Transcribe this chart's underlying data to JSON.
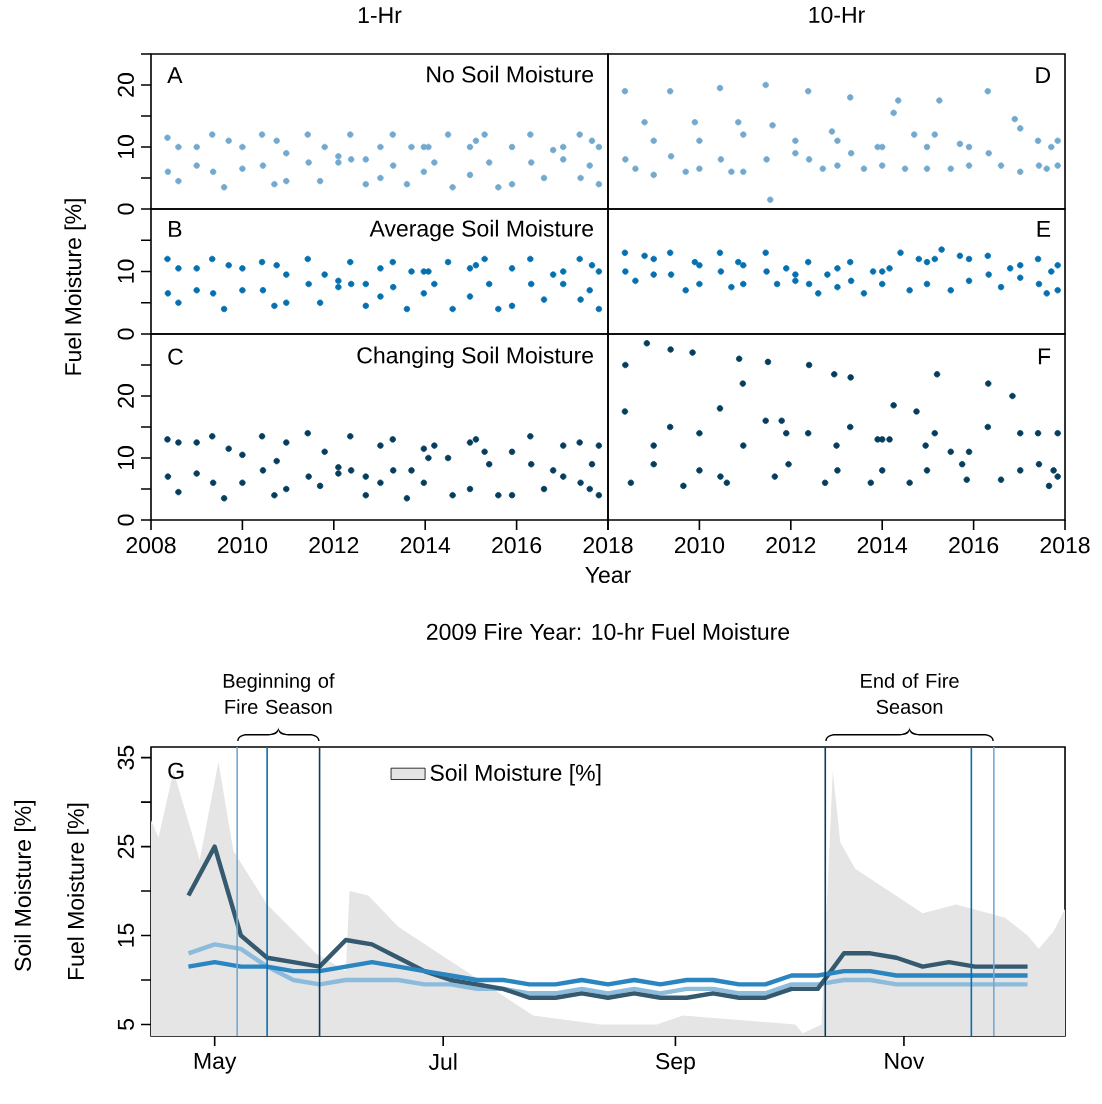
{
  "chart_data": [
    {
      "type": "scatter",
      "title": "1-Hr",
      "annotations": [
        "A",
        "No Soil Moisture"
      ],
      "color": "#74a9cf",
      "tick_labels": "y",
      "xlim": [
        2008,
        2018
      ],
      "ylim": [
        0,
        25
      ],
      "yticks": [
        0,
        {
          "value": 5,
          "label": null
        },
        10,
        {
          "value": 15,
          "label": null
        },
        20,
        {
          "value": 25,
          "label": null
        }
      ],
      "x": [
        2008.36,
        2008.37,
        2008.6,
        2008.6,
        2009.0,
        2009.0,
        2009.34,
        2009.36,
        2009.6,
        2009.7,
        2010.0,
        2010.0,
        2010.43,
        2010.45,
        2010.7,
        2010.75,
        2010.96,
        2010.96,
        2011.43,
        2011.45,
        2011.7,
        2011.8,
        2012.1,
        2012.1,
        2012.36,
        2012.38,
        2012.7,
        2012.7,
        2013.02,
        2013.02,
        2013.29,
        2013.3,
        2013.6,
        2013.7,
        2013.97,
        2013.97,
        2014.07,
        2014.2,
        2014.6,
        2014.5,
        2014.98,
        2014.98,
        2015.11,
        2015.3,
        2015.6,
        2015.4,
        2015.9,
        2015.9,
        2016.3,
        2016.32,
        2016.6,
        2016.8,
        2017.02,
        2017.02,
        2017.38,
        2017.4,
        2017.6,
        2017.65,
        2017.8,
        2017.8
      ],
      "values": [
        11.5,
        6,
        4.5,
        10,
        10,
        7,
        12,
        6,
        3.5,
        11,
        10,
        6.5,
        12,
        7,
        4,
        11,
        9,
        4.5,
        12,
        7.5,
        4.5,
        10,
        8.5,
        7.5,
        12,
        8,
        4,
        8,
        10,
        5,
        12,
        7,
        4,
        10,
        10,
        6,
        10,
        7.5,
        3.5,
        12,
        10,
        5.5,
        11,
        12,
        3.5,
        7.5,
        10,
        4,
        12,
        7.5,
        5,
        9.5,
        10,
        8,
        12,
        5,
        7,
        11,
        10,
        4
      ]
    },
    {
      "type": "scatter",
      "title": "10-Hr",
      "annotations": [
        "D"
      ],
      "color": "#74a9cf",
      "tick_labels": false,
      "xlim": [
        2008,
        2018
      ],
      "ylim": [
        0,
        25
      ],
      "x": [
        2008.37,
        2008.38,
        2008.6,
        2008.8,
        2009.0,
        2009.0,
        2009.36,
        2009.38,
        2009.7,
        2009.9,
        2010.0,
        2010.0,
        2010.45,
        2010.47,
        2010.7,
        2010.85,
        2010.96,
        2010.96,
        2011.45,
        2011.47,
        2011.55,
        2011.6,
        2012.1,
        2012.1,
        2012.38,
        2012.4,
        2012.7,
        2012.9,
        2013.02,
        2013.02,
        2013.3,
        2013.32,
        2013.6,
        2013.9,
        2014.0,
        2014.0,
        2014.25,
        2014.35,
        2014.5,
        2014.7,
        2014.98,
        2014.98,
        2015.15,
        2015.25,
        2015.5,
        2015.7,
        2015.9,
        2015.9,
        2016.31,
        2016.33,
        2016.6,
        2016.9,
        2017.02,
        2017.02,
        2017.41,
        2017.43,
        2017.6,
        2017.7,
        2017.84,
        2017.84
      ],
      "values": [
        19,
        8,
        6.5,
        14,
        11,
        5.5,
        19,
        8.5,
        6,
        14,
        11,
        6.5,
        19.5,
        8,
        6,
        14,
        12,
        6,
        20,
        8,
        1.5,
        13.5,
        11,
        9,
        19,
        8,
        6.5,
        12.5,
        11,
        7,
        18,
        9,
        6.5,
        10,
        10,
        7,
        15.5,
        17.5,
        6.5,
        12,
        10,
        6.5,
        12,
        17.5,
        6.5,
        10.5,
        10,
        7,
        19,
        9,
        7,
        14.5,
        13,
        6,
        11,
        7,
        6.5,
        10,
        11,
        7
      ]
    },
    {
      "type": "scatter",
      "ylabel": "Fuel Moisture [%]",
      "annotations": [
        "B",
        "Average Soil Moisture"
      ],
      "color": "#0570b0",
      "tick_labels": "y",
      "xlim": [
        2008,
        2018
      ],
      "ylim": [
        0,
        20
      ],
      "yticks": [
        0,
        {
          "value": 5,
          "label": null
        },
        10,
        {
          "value": 15,
          "label": null
        }
      ],
      "x": [
        2008.36,
        2008.37,
        2008.6,
        2008.6,
        2009.0,
        2009.0,
        2009.34,
        2009.36,
        2009.6,
        2009.7,
        2010.0,
        2010.0,
        2010.43,
        2010.45,
        2010.7,
        2010.75,
        2010.96,
        2010.96,
        2011.43,
        2011.45,
        2011.7,
        2011.8,
        2012.1,
        2012.1,
        2012.36,
        2012.38,
        2012.7,
        2012.7,
        2013.02,
        2013.02,
        2013.29,
        2013.3,
        2013.6,
        2013.7,
        2013.97,
        2013.97,
        2014.07,
        2014.2,
        2014.6,
        2014.5,
        2014.98,
        2014.98,
        2015.11,
        2015.3,
        2015.6,
        2015.4,
        2015.9,
        2015.9,
        2016.3,
        2016.32,
        2016.6,
        2016.8,
        2017.02,
        2017.02,
        2017.38,
        2017.4,
        2017.6,
        2017.65,
        2017.8,
        2017.8
      ],
      "values": [
        12,
        6.5,
        5,
        10.5,
        10.5,
        7,
        12,
        6.5,
        4,
        11,
        10.5,
        7,
        11.5,
        7,
        4.5,
        11,
        9.5,
        5,
        12,
        8,
        5,
        9.5,
        8.5,
        7.5,
        11.5,
        8,
        4.5,
        8,
        10.5,
        6,
        11.5,
        7.5,
        4,
        10,
        10,
        6.5,
        10,
        8,
        4,
        11.5,
        10.5,
        6,
        11,
        12,
        4,
        8,
        10.5,
        4.5,
        12,
        8,
        5.5,
        9.5,
        10,
        8,
        12,
        5.5,
        7,
        11,
        10,
        4
      ]
    },
    {
      "type": "scatter",
      "annotations": [
        "E"
      ],
      "color": "#0570b0",
      "tick_labels": false,
      "xlim": [
        2008,
        2018
      ],
      "ylim": [
        0,
        20
      ],
      "x": [
        2008.37,
        2008.38,
        2008.6,
        2008.8,
        2009.0,
        2009.0,
        2009.36,
        2009.38,
        2009.7,
        2009.9,
        2010.0,
        2010.0,
        2010.45,
        2010.47,
        2010.7,
        2010.85,
        2010.96,
        2010.96,
        2011.45,
        2011.47,
        2011.7,
        2011.9,
        2012.1,
        2012.1,
        2012.38,
        2012.4,
        2012.6,
        2012.8,
        2013.02,
        2013.02,
        2013.3,
        2013.32,
        2013.6,
        2013.8,
        2014.0,
        2014.0,
        2014.16,
        2014.4,
        2014.6,
        2014.8,
        2014.98,
        2014.98,
        2015.15,
        2015.3,
        2015.5,
        2015.7,
        2015.9,
        2015.9,
        2016.31,
        2016.33,
        2016.6,
        2016.8,
        2017.02,
        2017.02,
        2017.41,
        2017.43,
        2017.6,
        2017.7,
        2017.84,
        2017.84
      ],
      "values": [
        13,
        10,
        8.5,
        12.5,
        12,
        9.5,
        13,
        9.5,
        7,
        11.5,
        11,
        8,
        13,
        10,
        7.5,
        11.5,
        11,
        8,
        13,
        10,
        8,
        10.5,
        9.5,
        8.5,
        11.5,
        8,
        6.5,
        9.5,
        10.5,
        7.5,
        11.5,
        8.5,
        6.5,
        10,
        10,
        8,
        10.5,
        13,
        7,
        12,
        11.5,
        8,
        12,
        13.5,
        7,
        12.5,
        12,
        8.5,
        12.5,
        9.5,
        7.5,
        10.5,
        11,
        9,
        12,
        8,
        6.5,
        10,
        11,
        7
      ]
    },
    {
      "type": "scatter",
      "xlabel": "Year",
      "annotations": [
        "C",
        "Changing Soil Moisture"
      ],
      "color": "#053d5e",
      "xlim": [
        2008,
        2018
      ],
      "ylim": [
        0,
        30
      ],
      "xticks": [
        2008,
        2010,
        2012,
        2014,
        2016,
        2018
      ],
      "yticks": [
        0,
        {
          "value": 5,
          "label": null
        },
        10,
        {
          "value": 15,
          "label": null
        },
        20,
        {
          "value": 25,
          "label": null
        }
      ],
      "x": [
        2008.36,
        2008.37,
        2008.6,
        2008.6,
        2009.0,
        2009.0,
        2009.34,
        2009.36,
        2009.6,
        2009.7,
        2010.0,
        2010.0,
        2010.43,
        2010.45,
        2010.7,
        2010.75,
        2010.96,
        2010.96,
        2011.43,
        2011.45,
        2011.7,
        2011.8,
        2012.1,
        2012.1,
        2012.36,
        2012.38,
        2012.7,
        2012.7,
        2013.02,
        2013.02,
        2013.29,
        2013.3,
        2013.6,
        2013.7,
        2013.97,
        2013.97,
        2014.07,
        2014.2,
        2014.6,
        2014.5,
        2014.98,
        2014.98,
        2015.11,
        2015.3,
        2015.6,
        2015.4,
        2015.9,
        2015.9,
        2016.3,
        2016.32,
        2016.6,
        2016.8,
        2017.02,
        2017.02,
        2017.38,
        2017.4,
        2017.6,
        2017.65,
        2017.8,
        2017.8
      ],
      "values": [
        13,
        7,
        4.5,
        12.5,
        12.5,
        7.5,
        13.5,
        6,
        3.5,
        11.5,
        10.5,
        6,
        13.5,
        8,
        4,
        9.5,
        12.5,
        5,
        14,
        7,
        5.5,
        11,
        8.5,
        7.5,
        13.5,
        8,
        4,
        7,
        12,
        6,
        13,
        8,
        3.5,
        8,
        11.5,
        6,
        10,
        12,
        4,
        10,
        12.5,
        5,
        13,
        11,
        4,
        9,
        11,
        4,
        13.5,
        9,
        5,
        8,
        12,
        7,
        12.5,
        6,
        5,
        9,
        12,
        4
      ]
    },
    {
      "type": "scatter",
      "annotations": [
        "F"
      ],
      "color": "#053d5e",
      "tick_labels": "x",
      "xlim": [
        2008,
        2018
      ],
      "ylim": [
        0,
        30
      ],
      "xticks": [
        {
          "value": 2008,
          "label": null
        },
        2010,
        2012,
        2014,
        2016,
        2018
      ],
      "x": [
        2008.37,
        2008.38,
        2008.5,
        2008.85,
        2009.0,
        2009.0,
        2009.36,
        2009.37,
        2009.65,
        2009.85,
        2010.0,
        2010.0,
        2010.45,
        2010.46,
        2010.6,
        2010.87,
        2010.95,
        2010.96,
        2011.45,
        2011.5,
        2011.65,
        2011.8,
        2011.95,
        2011.9,
        2012.38,
        2012.4,
        2012.75,
        2012.95,
        2013.0,
        2013.02,
        2013.3,
        2013.31,
        2013.75,
        2013.9,
        2014.0,
        2014.0,
        2014.16,
        2014.25,
        2014.6,
        2014.75,
        2014.95,
        2014.98,
        2015.15,
        2015.2,
        2015.5,
        2015.85,
        2015.9,
        2015.75,
        2016.31,
        2016.32,
        2016.6,
        2016.85,
        2017.02,
        2017.02,
        2017.41,
        2017.43,
        2017.65,
        2017.75,
        2017.84,
        2017.84
      ],
      "values": [
        17.5,
        25,
        6,
        28.5,
        12,
        9,
        15,
        27.5,
        5.5,
        27,
        14,
        8,
        18,
        7,
        6,
        26,
        22,
        12,
        16,
        25.5,
        7,
        16,
        9,
        14,
        14,
        25,
        6,
        23.5,
        12,
        8,
        15,
        23,
        6,
        13,
        13,
        8,
        13,
        18.5,
        6,
        17.5,
        12,
        8,
        14,
        23.5,
        11,
        6.5,
        11,
        9,
        15,
        22,
        6.5,
        20,
        14,
        8,
        14,
        9,
        5.5,
        8,
        14,
        7
      ]
    },
    {
      "type": "line",
      "title": "2009 Fire Year: 10-hr Fuel Moisture",
      "ylabel": "Fuel Moisture [%]",
      "annotations": [
        "G",
        "Beginning of Fire Season",
        "End of Fire Season",
        "Soil Moisture [%]"
      ],
      "legend": "top",
      "xlim": [
        "2009-04-14",
        "2009-12-14"
      ],
      "ylim": [
        3.7,
        36.2
      ],
      "xticks": [
        {
          "value": "2009-05-01",
          "label": "May"
        },
        {
          "value": "2009-07-01",
          "label": "Jul"
        },
        {
          "value": "2009-09-01",
          "label": "Sep"
        },
        {
          "value": "2009-11-01",
          "label": "Nov"
        }
      ],
      "yticks": [
        5,
        {
          "value": 10,
          "label": null
        },
        15,
        {
          "value": 20,
          "label": null
        },
        25,
        {
          "value": 30,
          "label": null
        },
        35
      ],
      "ref_lines": [
        {
          "axis": "x",
          "value": "2009-05-07",
          "color": "#74a9cf"
        },
        {
          "axis": "x",
          "value": "2009-05-15",
          "color": "#0570b0"
        },
        {
          "axis": "x",
          "value": "2009-05-29",
          "color": "#053d5e"
        },
        {
          "axis": "x",
          "value": "2009-10-11",
          "color": "#053d5e"
        },
        {
          "axis": "x",
          "value": "2009-11-19",
          "color": "#0570b0"
        },
        {
          "axis": "x",
          "value": "2009-11-25",
          "color": "#74a9cf"
        }
      ],
      "x": [
        "2009-04-24",
        "2009-05-01",
        "2009-05-08",
        "2009-05-15",
        "2009-05-22",
        "2009-05-29",
        "2009-06-05",
        "2009-06-12",
        "2009-06-19",
        "2009-06-26",
        "2009-07-03",
        "2009-07-10",
        "2009-07-17",
        "2009-07-24",
        "2009-07-31",
        "2009-08-07",
        "2009-08-14",
        "2009-08-21",
        "2009-08-28",
        "2009-09-04",
        "2009-09-11",
        "2009-09-18",
        "2009-09-25",
        "2009-10-02",
        "2009-10-09",
        "2009-10-16",
        "2009-10-23",
        "2009-10-30",
        "2009-11-06",
        "2009-11-13",
        "2009-11-20",
        "2009-11-27",
        "2009-12-04"
      ],
      "series": [
        {
          "name": "Soil Moisture [%]",
          "type": "area",
          "color": "#e5e5e5",
          "x": [
            "2009-04-14",
            "2009-04-16",
            "2009-04-20",
            "2009-04-27",
            "2009-05-02",
            "2009-05-06",
            "2009-05-15",
            "2009-05-28",
            "2009-06-05",
            "2009-06-06",
            "2009-06-11",
            "2009-06-19",
            "2009-07-07",
            "2009-07-25",
            "2009-08-12",
            "2009-08-27",
            "2009-09-03",
            "2009-10-03",
            "2009-10-05",
            "2009-10-10",
            "2009-10-13",
            "2009-10-15",
            "2009-10-19",
            "2009-10-28",
            "2009-11-06",
            "2009-11-15",
            "2009-11-28",
            "2009-12-04",
            "2009-12-07",
            "2009-12-11",
            "2009-12-14"
          ],
          "values": [
            28,
            26,
            33.5,
            23.5,
            34.5,
            24.5,
            18.5,
            13,
            11,
            20,
            19.5,
            16,
            11,
            6,
            5,
            5,
            6,
            5,
            4,
            5,
            33.5,
            25.5,
            22.5,
            20,
            17.5,
            18.5,
            17,
            15,
            13.5,
            15.5,
            18
          ]
        },
        {
          "color": "#8dbbdc",
          "values": [
            13,
            14,
            13.5,
            11.5,
            10,
            9.5,
            10,
            10,
            10,
            9.5,
            9.5,
            9,
            9,
            8.5,
            8.5,
            9,
            8.5,
            9,
            8.5,
            9,
            9,
            8.5,
            8.5,
            9.5,
            9.5,
            10,
            10,
            9.5,
            9.5,
            9.5,
            9.5,
            9.5,
            9.5
          ]
        },
        {
          "color": "#35596f",
          "values": [
            19.5,
            25,
            15,
            12.5,
            12,
            11.5,
            14.5,
            14,
            12.5,
            11,
            10,
            9.5,
            9,
            8,
            8,
            8.5,
            8,
            8.5,
            8,
            8,
            8.5,
            8,
            8,
            9,
            9,
            13,
            13,
            12.5,
            11.5,
            12,
            11.5,
            11.5,
            11.5
          ]
        },
        {
          "color": "#2a85c0",
          "values": [
            11.5,
            12,
            11.5,
            11.5,
            11,
            11,
            11.5,
            12,
            11.5,
            11,
            10.5,
            10,
            10,
            9.5,
            9.5,
            10,
            9.5,
            10,
            9.5,
            10,
            10,
            9.5,
            9.5,
            10.5,
            10.5,
            11,
            11,
            10.5,
            10.5,
            10.5,
            10.5,
            10.5,
            10.5
          ]
        }
      ]
    }
  ]
}
